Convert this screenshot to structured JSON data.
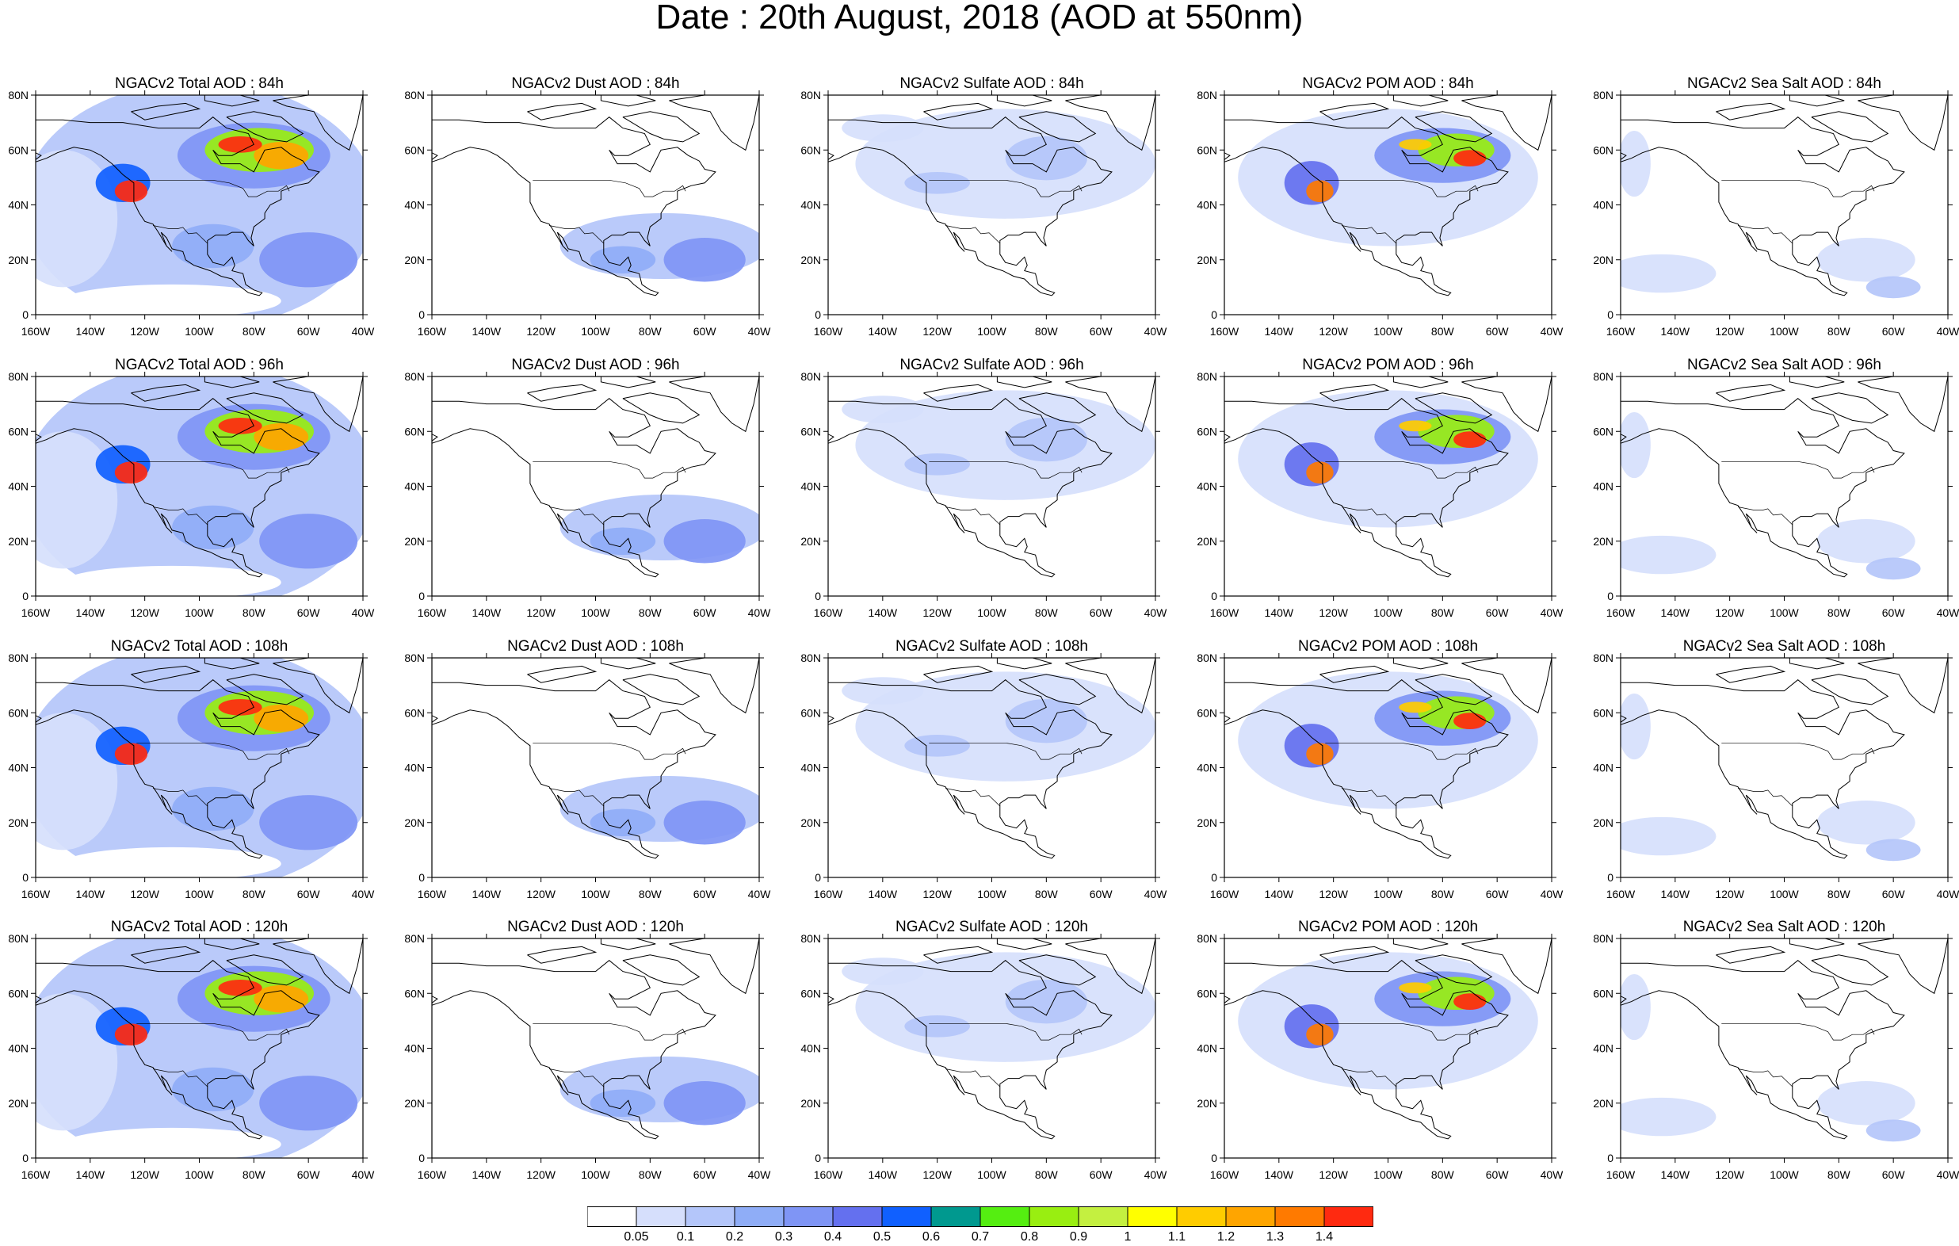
{
  "title": "Date : 20th August, 2018 (AOD at 550nm)",
  "panels": [
    [
      {
        "title": "NGACv2 Total AOD : 84h",
        "field": "total"
      },
      {
        "title": "NGACv2 Dust AOD : 84h",
        "field": "dust"
      },
      {
        "title": "NGACv2 Sulfate AOD : 84h",
        "field": "sulfate"
      },
      {
        "title": "NGACv2 POM AOD : 84h",
        "field": "pom"
      },
      {
        "title": "NGACv2 Sea Salt AOD : 84h",
        "field": "seasalt"
      }
    ],
    [
      {
        "title": "NGACv2 Total AOD : 96h",
        "field": "total"
      },
      {
        "title": "NGACv2 Dust AOD : 96h",
        "field": "dust"
      },
      {
        "title": "NGACv2 Sulfate AOD : 96h",
        "field": "sulfate"
      },
      {
        "title": "NGACv2 POM AOD : 96h",
        "field": "pom"
      },
      {
        "title": "NGACv2 Sea Salt AOD : 96h",
        "field": "seasalt"
      }
    ],
    [
      {
        "title": "NGACv2 Total AOD : 108h",
        "field": "total"
      },
      {
        "title": "NGACv2 Dust AOD : 108h",
        "field": "dust"
      },
      {
        "title": "NGACv2 Sulfate AOD : 108h",
        "field": "sulfate"
      },
      {
        "title": "NGACv2 POM AOD : 108h",
        "field": "pom"
      },
      {
        "title": "NGACv2 Sea Salt AOD : 108h",
        "field": "seasalt"
      }
    ],
    [
      {
        "title": "NGACv2 Total AOD : 120h",
        "field": "total"
      },
      {
        "title": "NGACv2 Dust AOD : 120h",
        "field": "dust"
      },
      {
        "title": "NGACv2 Sulfate AOD : 120h",
        "field": "sulfate"
      },
      {
        "title": "NGACv2 POM AOD : 120h",
        "field": "pom"
      },
      {
        "title": "NGACv2 Sea Salt  AOD : 120h",
        "field": "seasalt"
      }
    ]
  ],
  "lon_ticks": [
    "160W",
    "140W",
    "120W",
    "100W",
    "80W",
    "60W",
    "40W"
  ],
  "lat_ticks": [
    "0",
    "20N",
    "40N",
    "60N",
    "80N"
  ],
  "colorbar": {
    "colors": [
      "#ffffff",
      "#d6dffc",
      "#b4c6fa",
      "#8fadf7",
      "#7f95f5",
      "#6470ef",
      "#1060ff",
      "#00998f",
      "#55ee11",
      "#99ee11",
      "#c4f040",
      "#ffff00",
      "#ffcc00",
      "#ffa500",
      "#ff7a00",
      "#ff2a10"
    ],
    "labels": [
      "0.05",
      "0.1",
      "0.2",
      "0.3",
      "0.4",
      "0.5",
      "0.6",
      "0.7",
      "0.8",
      "0.9",
      "1",
      "1.1",
      "1.2",
      "1.3",
      "1.4"
    ]
  }
}
